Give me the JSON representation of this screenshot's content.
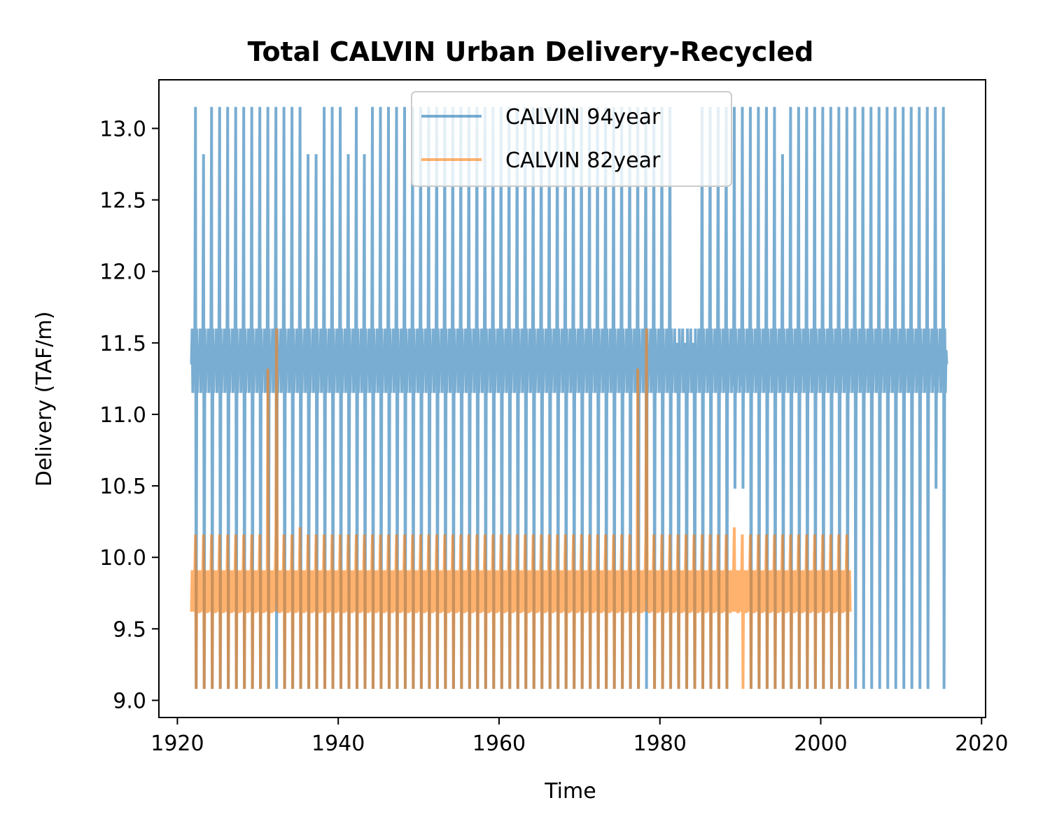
{
  "chart_data": {
    "type": "line",
    "title": "Total CALVIN Urban Delivery-Recycled",
    "xlabel": "Time",
    "ylabel": "Delivery (TAF/m)",
    "xlim": [
      1917.7,
      2020.5
    ],
    "ylim": [
      8.88,
      13.34
    ],
    "xticks": [
      "1920",
      "1940",
      "1960",
      "1980",
      "2000",
      "2020"
    ],
    "yticks": [
      "9.0",
      "9.5",
      "10.0",
      "10.5",
      "11.0",
      "11.5",
      "12.0",
      "12.5",
      "13.0"
    ],
    "legend_position": "upper center",
    "grid": false,
    "series": [
      {
        "name": "CALVIN 94year",
        "color": "#1f77b4",
        "alpha": 0.6,
        "start_year": 1921.75,
        "end_year": 2015.75,
        "monthly_pattern": [
          11.35,
          11.6,
          11.15,
          11.45,
          11.2,
          11.5,
          13.15,
          9.08,
          11.6,
          11.15,
          11.45,
          11.35
        ],
        "peak_default": 13.15,
        "peak_exceptions": {
          "1923": 12.82,
          "1936": 12.82,
          "1937": 12.82,
          "1941": 12.82,
          "1943": 12.82,
          "1982": 11.45,
          "1983": 11.45,
          "1984": 11.45,
          "1995": 12.82
        },
        "low_default": 9.08,
        "low_exceptions": {
          "1989": 10.48,
          "1990": 10.48,
          "2014": 10.48
        }
      },
      {
        "name": "CALVIN 82year",
        "color": "#ff7f0e",
        "alpha": 0.6,
        "start_year": 1921.75,
        "end_year": 2003.75,
        "monthly_pattern": [
          9.62,
          9.91,
          9.62,
          9.91,
          9.62,
          9.91,
          10.16,
          9.08,
          9.91,
          9.62,
          9.91,
          9.62
        ],
        "peak_default": 10.16,
        "peak_exceptions": {
          "1931": 11.32,
          "1935": 10.21,
          "1977": 11.32,
          "1989": 10.21
        },
        "spike_max": {
          "1932": 11.6,
          "1978": 11.6
        },
        "low_default": 9.08,
        "low_exceptions": {
          "1989": 9.62
        }
      }
    ]
  }
}
